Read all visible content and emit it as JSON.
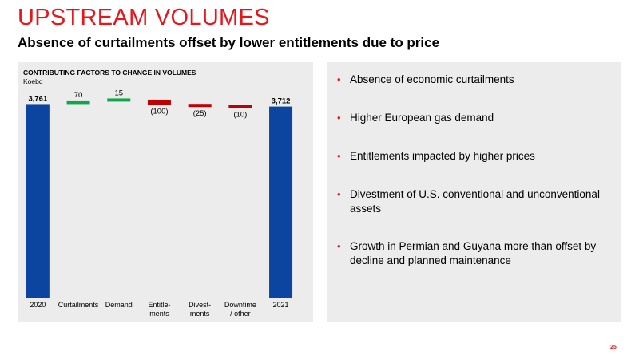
{
  "slide": {
    "title": "UPSTREAM VOLUMES",
    "subtitle": "Absence of curtailments offset by lower entitlements due to price",
    "page_number": "25"
  },
  "chart_panel": {
    "heading": "CONTRIBUTING FACTORS TO CHANGE IN VOLUMES",
    "unit": "Koebd"
  },
  "chart_data": {
    "type": "bar",
    "subtype": "waterfall",
    "title": "CONTRIBUTING FACTORS TO CHANGE IN VOLUMES",
    "ylabel": "Koebd",
    "ylim": [
      0,
      4450
    ],
    "grid": false,
    "categories": [
      [
        "2020"
      ],
      [
        "Curtailments"
      ],
      [
        "Demand"
      ],
      [
        "Entitle-",
        "ments"
      ],
      [
        "Divest-",
        "ments"
      ],
      [
        "Downtime",
        "/ other"
      ],
      [
        "2021"
      ]
    ],
    "bars": [
      {
        "kind": "total",
        "value": 3761,
        "start": 0,
        "end": 3761,
        "label": "3,761",
        "color": "#0b45a0"
      },
      {
        "kind": "increase",
        "value": 70,
        "start": 3761,
        "end": 3831,
        "label": "70",
        "color": "#11a64b"
      },
      {
        "kind": "increase",
        "value": 15,
        "start": 3831,
        "end": 3846,
        "label": "15",
        "color": "#11a64b"
      },
      {
        "kind": "decrease",
        "value": -100,
        "start": 3846,
        "end": 3746,
        "label": "(100)",
        "color": "#c00000"
      },
      {
        "kind": "decrease",
        "value": -25,
        "start": 3746,
        "end": 3721,
        "label": "(25)",
        "color": "#c00000"
      },
      {
        "kind": "decrease",
        "value": -10,
        "start": 3721,
        "end": 3711,
        "label": "(10)",
        "color": "#c00000"
      },
      {
        "kind": "total",
        "value": 3712,
        "start": 0,
        "end": 3712,
        "label": "3,712",
        "color": "#0b45a0"
      }
    ]
  },
  "bullets": [
    "Absence of economic curtailments",
    "Higher European gas demand",
    "Entitlements impacted by higher prices",
    "Divestment of U.S. conventional and unconventional assets",
    "Growth in Permian and Guyana more than offset by decline and planned maintenance"
  ],
  "colors": {
    "accent_red": "#e8161b",
    "total_blue": "#0b45a0",
    "increase_green": "#11a64b",
    "decrease_red": "#c00000",
    "panel_gray": "#ececec"
  }
}
